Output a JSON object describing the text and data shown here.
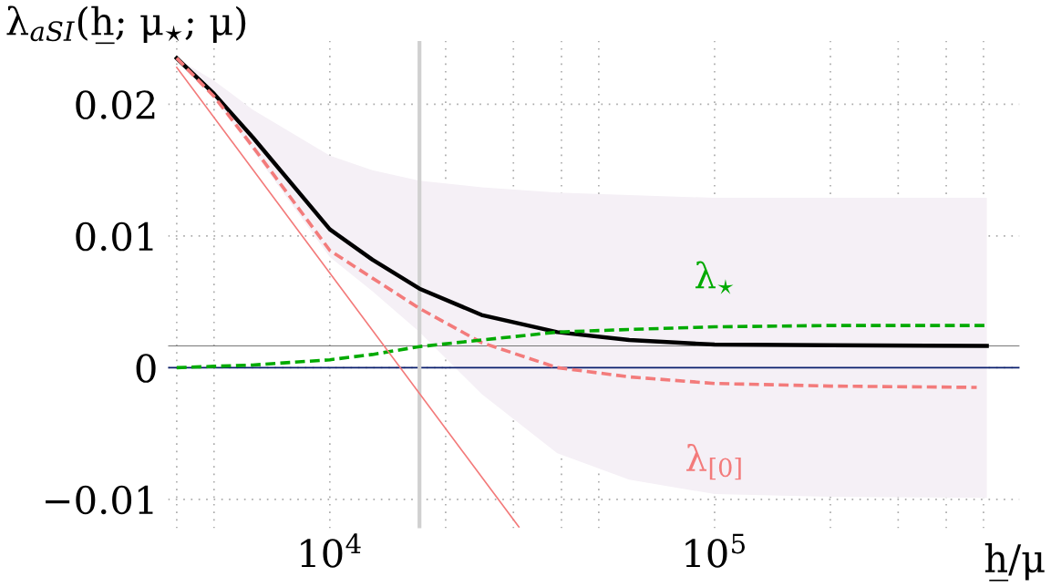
{
  "chart_data": {
    "type": "line",
    "ylabel": "λ$_{aSI}$(h̲; μ$_{⋆}$; μ)",
    "xlabel": "h̲/μ",
    "log": "x",
    "grid": true,
    "xlim": [
      3800,
      620000
    ],
    "ylim": [
      -0.0122,
      0.0248
    ],
    "xticks": [
      {
        "value": 4000,
        "label": null
      },
      {
        "value": 5000,
        "label": null
      },
      {
        "value": 10000,
        "label": "10$^{4}$"
      },
      {
        "value": 20000,
        "label": null
      },
      {
        "value": 30000,
        "label": null
      },
      {
        "value": 40000,
        "label": null
      },
      {
        "value": 50000,
        "label": null
      },
      {
        "value": 100000,
        "label": "10$^{5}$"
      },
      {
        "value": 200000,
        "label": null
      },
      {
        "value": 300000,
        "label": null
      },
      {
        "value": 400000,
        "label": null
      },
      {
        "value": 500000,
        "label": null
      }
    ],
    "yticks": [
      {
        "value": -0.01,
        "label": "−0.01"
      },
      0,
      0.01,
      0.02
    ],
    "x": [
      4000,
      5000,
      6300,
      10000,
      12900,
      17100,
      24800,
      39000,
      60000,
      100000,
      200000,
      510000
    ],
    "series": [
      {
        "color": "#000000",
        "line_style": "solid",
        "values": [
          0.0235,
          0.0208,
          0.0175,
          0.0105,
          0.0082,
          0.006,
          0.004,
          0.0027,
          0.0021,
          0.00175,
          0.0017,
          0.00165
        ],
        "lower": [
          0.0235,
          0.0205,
          0.0165,
          0.0084,
          0.0058,
          0.0027,
          -0.002,
          -0.0065,
          -0.0085,
          -0.0096,
          -0.0098,
          -0.0099
        ],
        "upper": [
          0.0235,
          0.0218,
          0.0196,
          0.0161,
          0.015,
          0.0142,
          0.0137,
          0.0133,
          0.0131,
          0.0129,
          0.0129,
          0.0129
        ]
      },
      {
        "name": "λ$_{[0]}$",
        "color": "#f37b7b",
        "line_style": "dashed",
        "x": [
          4000,
          5000,
          6300,
          10000,
          12900,
          17100,
          24800,
          39000,
          60000,
          100000,
          200000,
          480000
        ],
        "values": [
          0.0235,
          0.0206,
          0.0168,
          0.0089,
          0.0068,
          0.0045,
          0.0019,
          0.0,
          -0.0007,
          -0.0012,
          -0.0014,
          -0.0015
        ]
      },
      {
        "name": "λ$_{⋆}$",
        "color": "#00aa00",
        "line_style": "dashed",
        "values": [
          0.0,
          0.0001,
          0.0002,
          0.0006,
          0.001,
          0.0016,
          0.0021,
          0.0027,
          0.0029,
          0.0031,
          0.0032,
          0.0032
        ]
      },
      {
        "color": "#f37b7b",
        "line_style": "solid",
        "x": [
          4000,
          31000
        ],
        "values": [
          0.0228,
          -0.0121
        ]
      }
    ],
    "ref_lines": [
      {
        "axis": "y",
        "value": 0,
        "color": "#0a1f6e"
      },
      {
        "axis": "y",
        "value": 0.00165,
        "color": "#777777"
      },
      {
        "axis": "x",
        "value": 17100,
        "color": "#d0d0d0"
      }
    ]
  }
}
